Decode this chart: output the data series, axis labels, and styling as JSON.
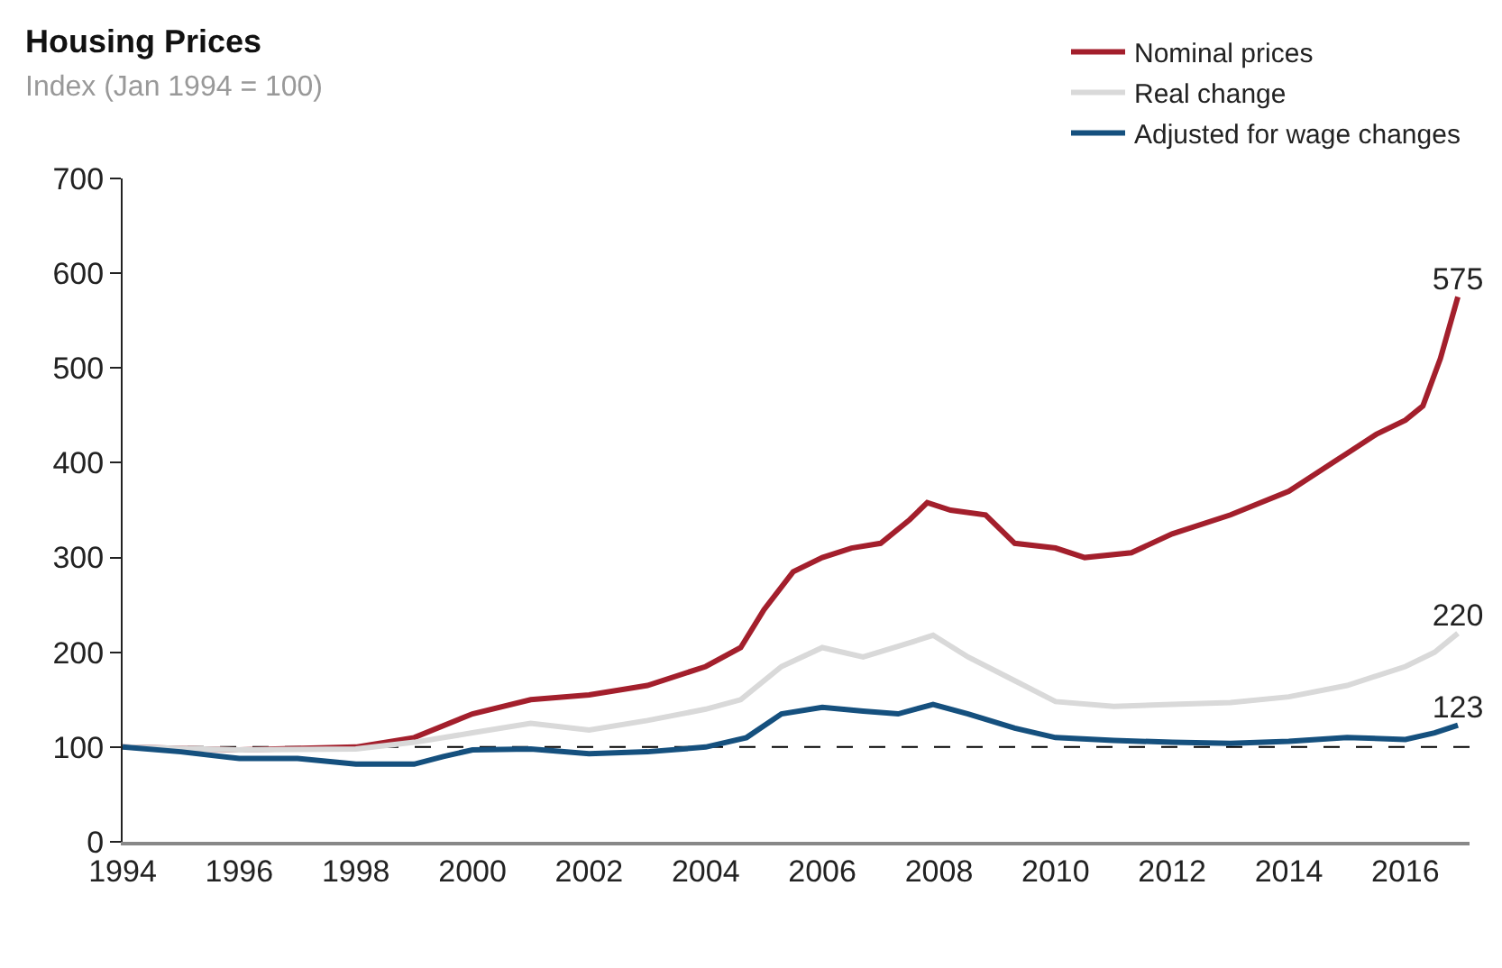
{
  "chart_data": {
    "type": "line",
    "title": "Housing Prices",
    "subtitle": "Index (Jan 1994 = 100)",
    "legend": "top right",
    "grid": false,
    "line_style": "solid",
    "marker": "none",
    "xlim": [
      1994,
      2017.1
    ],
    "xticks": [
      1994,
      1996,
      1998,
      2000,
      2002,
      2004,
      2006,
      2008,
      2010,
      2012,
      2014,
      2016
    ],
    "ylim": [
      0,
      700
    ],
    "yticks": [
      0,
      100,
      200,
      300,
      400,
      500,
      600,
      700
    ],
    "ref_lines": [
      {
        "axis": "y",
        "value": 100,
        "color": "#000000",
        "line_style": "dashed"
      }
    ],
    "series": [
      {
        "name": "Nominal prices",
        "color": "#a31f2c",
        "x": [
          1994,
          1996,
          1998,
          1999,
          2000,
          2001,
          2002,
          2003,
          2004,
          2004.6,
          2005,
          2005.5,
          2006,
          2006.5,
          2007,
          2007.5,
          2007.8,
          2008.2,
          2008.8,
          2009.3,
          2010,
          2010.5,
          2011.3,
          2012,
          2013,
          2014,
          2014.5,
          2015,
          2015.5,
          2016,
          2016.3,
          2016.6,
          2016.9
        ],
        "values": [
          100,
          97,
          100,
          110,
          135,
          150,
          155,
          165,
          185,
          205,
          245,
          285,
          300,
          310,
          315,
          340,
          358,
          350,
          345,
          315,
          310,
          300,
          305,
          325,
          345,
          370,
          390,
          410,
          430,
          445,
          460,
          510,
          575
        ],
        "value_labels": [
          null,
          null,
          null,
          null,
          null,
          null,
          null,
          null,
          null,
          null,
          null,
          null,
          null,
          null,
          null,
          null,
          null,
          null,
          null,
          null,
          null,
          null,
          null,
          null,
          null,
          null,
          null,
          null,
          null,
          null,
          null,
          null,
          "575"
        ]
      },
      {
        "name": "Real change",
        "color": "#d9d9d9",
        "x": [
          1994,
          1996,
          1998,
          1999,
          2000,
          2001,
          2002,
          2003,
          2004,
          2004.6,
          2005.3,
          2006,
          2006.7,
          2007.5,
          2007.9,
          2008.5,
          2009.3,
          2010,
          2011,
          2012,
          2013,
          2014,
          2015,
          2016,
          2016.5,
          2016.9
        ],
        "values": [
          100,
          97,
          98,
          105,
          115,
          125,
          118,
          128,
          140,
          150,
          185,
          205,
          195,
          210,
          218,
          195,
          170,
          148,
          143,
          145,
          147,
          153,
          165,
          185,
          200,
          220
        ],
        "value_labels": [
          null,
          null,
          null,
          null,
          null,
          null,
          null,
          null,
          null,
          null,
          null,
          null,
          null,
          null,
          null,
          null,
          null,
          null,
          null,
          null,
          null,
          null,
          null,
          null,
          null,
          "220"
        ]
      },
      {
        "name": "Adjusted for wage changes",
        "color": "#15507e",
        "x": [
          1994,
          1995,
          1996,
          1997,
          1998,
          1999,
          1999.5,
          2000,
          2001,
          2002,
          2003,
          2004,
          2004.7,
          2005.3,
          2006,
          2006.7,
          2007.3,
          2007.9,
          2008.5,
          2009.3,
          2010,
          2011,
          2012,
          2013,
          2014,
          2015,
          2016,
          2016.5,
          2016.9
        ],
        "values": [
          100,
          95,
          88,
          88,
          82,
          82,
          90,
          97,
          98,
          93,
          95,
          100,
          110,
          135,
          142,
          138,
          135,
          145,
          135,
          120,
          110,
          107,
          105,
          104,
          106,
          110,
          108,
          115,
          123
        ],
        "value_labels": [
          null,
          null,
          null,
          null,
          null,
          null,
          null,
          null,
          null,
          null,
          null,
          null,
          null,
          null,
          null,
          null,
          null,
          null,
          null,
          null,
          null,
          null,
          null,
          null,
          null,
          null,
          null,
          null,
          "123"
        ]
      }
    ]
  }
}
